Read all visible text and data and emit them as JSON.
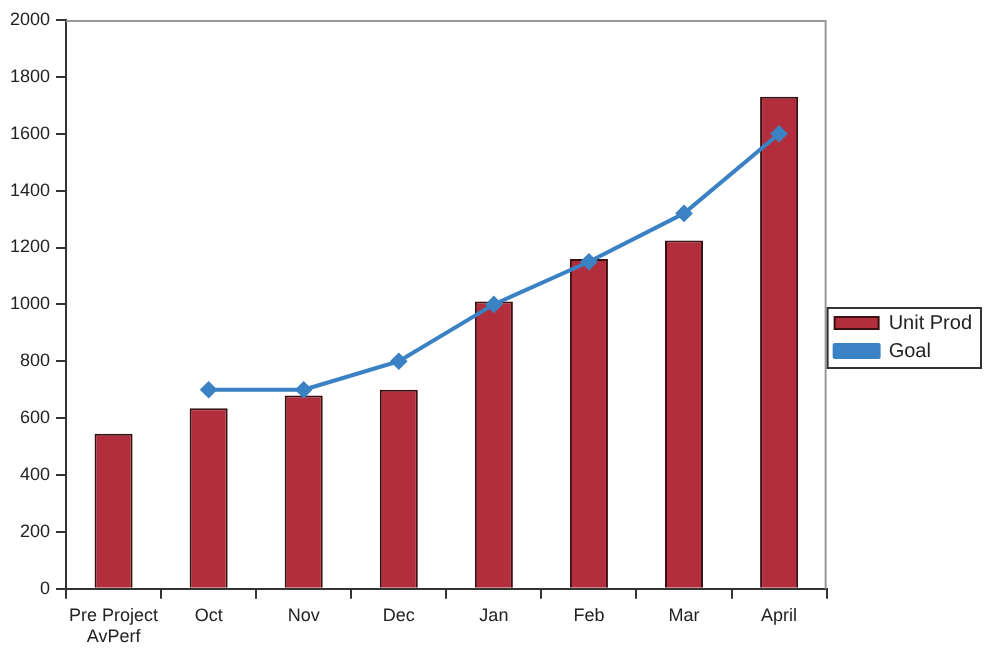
{
  "chart_data": {
    "type": "bar",
    "categories": [
      "Pre Project AvPerf",
      "Oct",
      "Nov",
      "Dec",
      "Jan",
      "Feb",
      "Mar",
      "April"
    ],
    "series": [
      {
        "name": "Unit Prod",
        "color": "#b22e3c",
        "values": [
          545,
          635,
          680,
          700,
          1010,
          1160,
          1225,
          1730
        ]
      },
      {
        "name": "Goal",
        "type": "line",
        "color": "#3b82c4",
        "marker": "diamond",
        "values": [
          null,
          700,
          700,
          800,
          1000,
          1150,
          1320,
          1600
        ]
      }
    ],
    "ylim": [
      0,
      2000
    ],
    "yticks": [
      0,
      200,
      400,
      600,
      800,
      1000,
      1200,
      1400,
      1600,
      1800,
      2000
    ],
    "grid": false,
    "legend": "right"
  }
}
